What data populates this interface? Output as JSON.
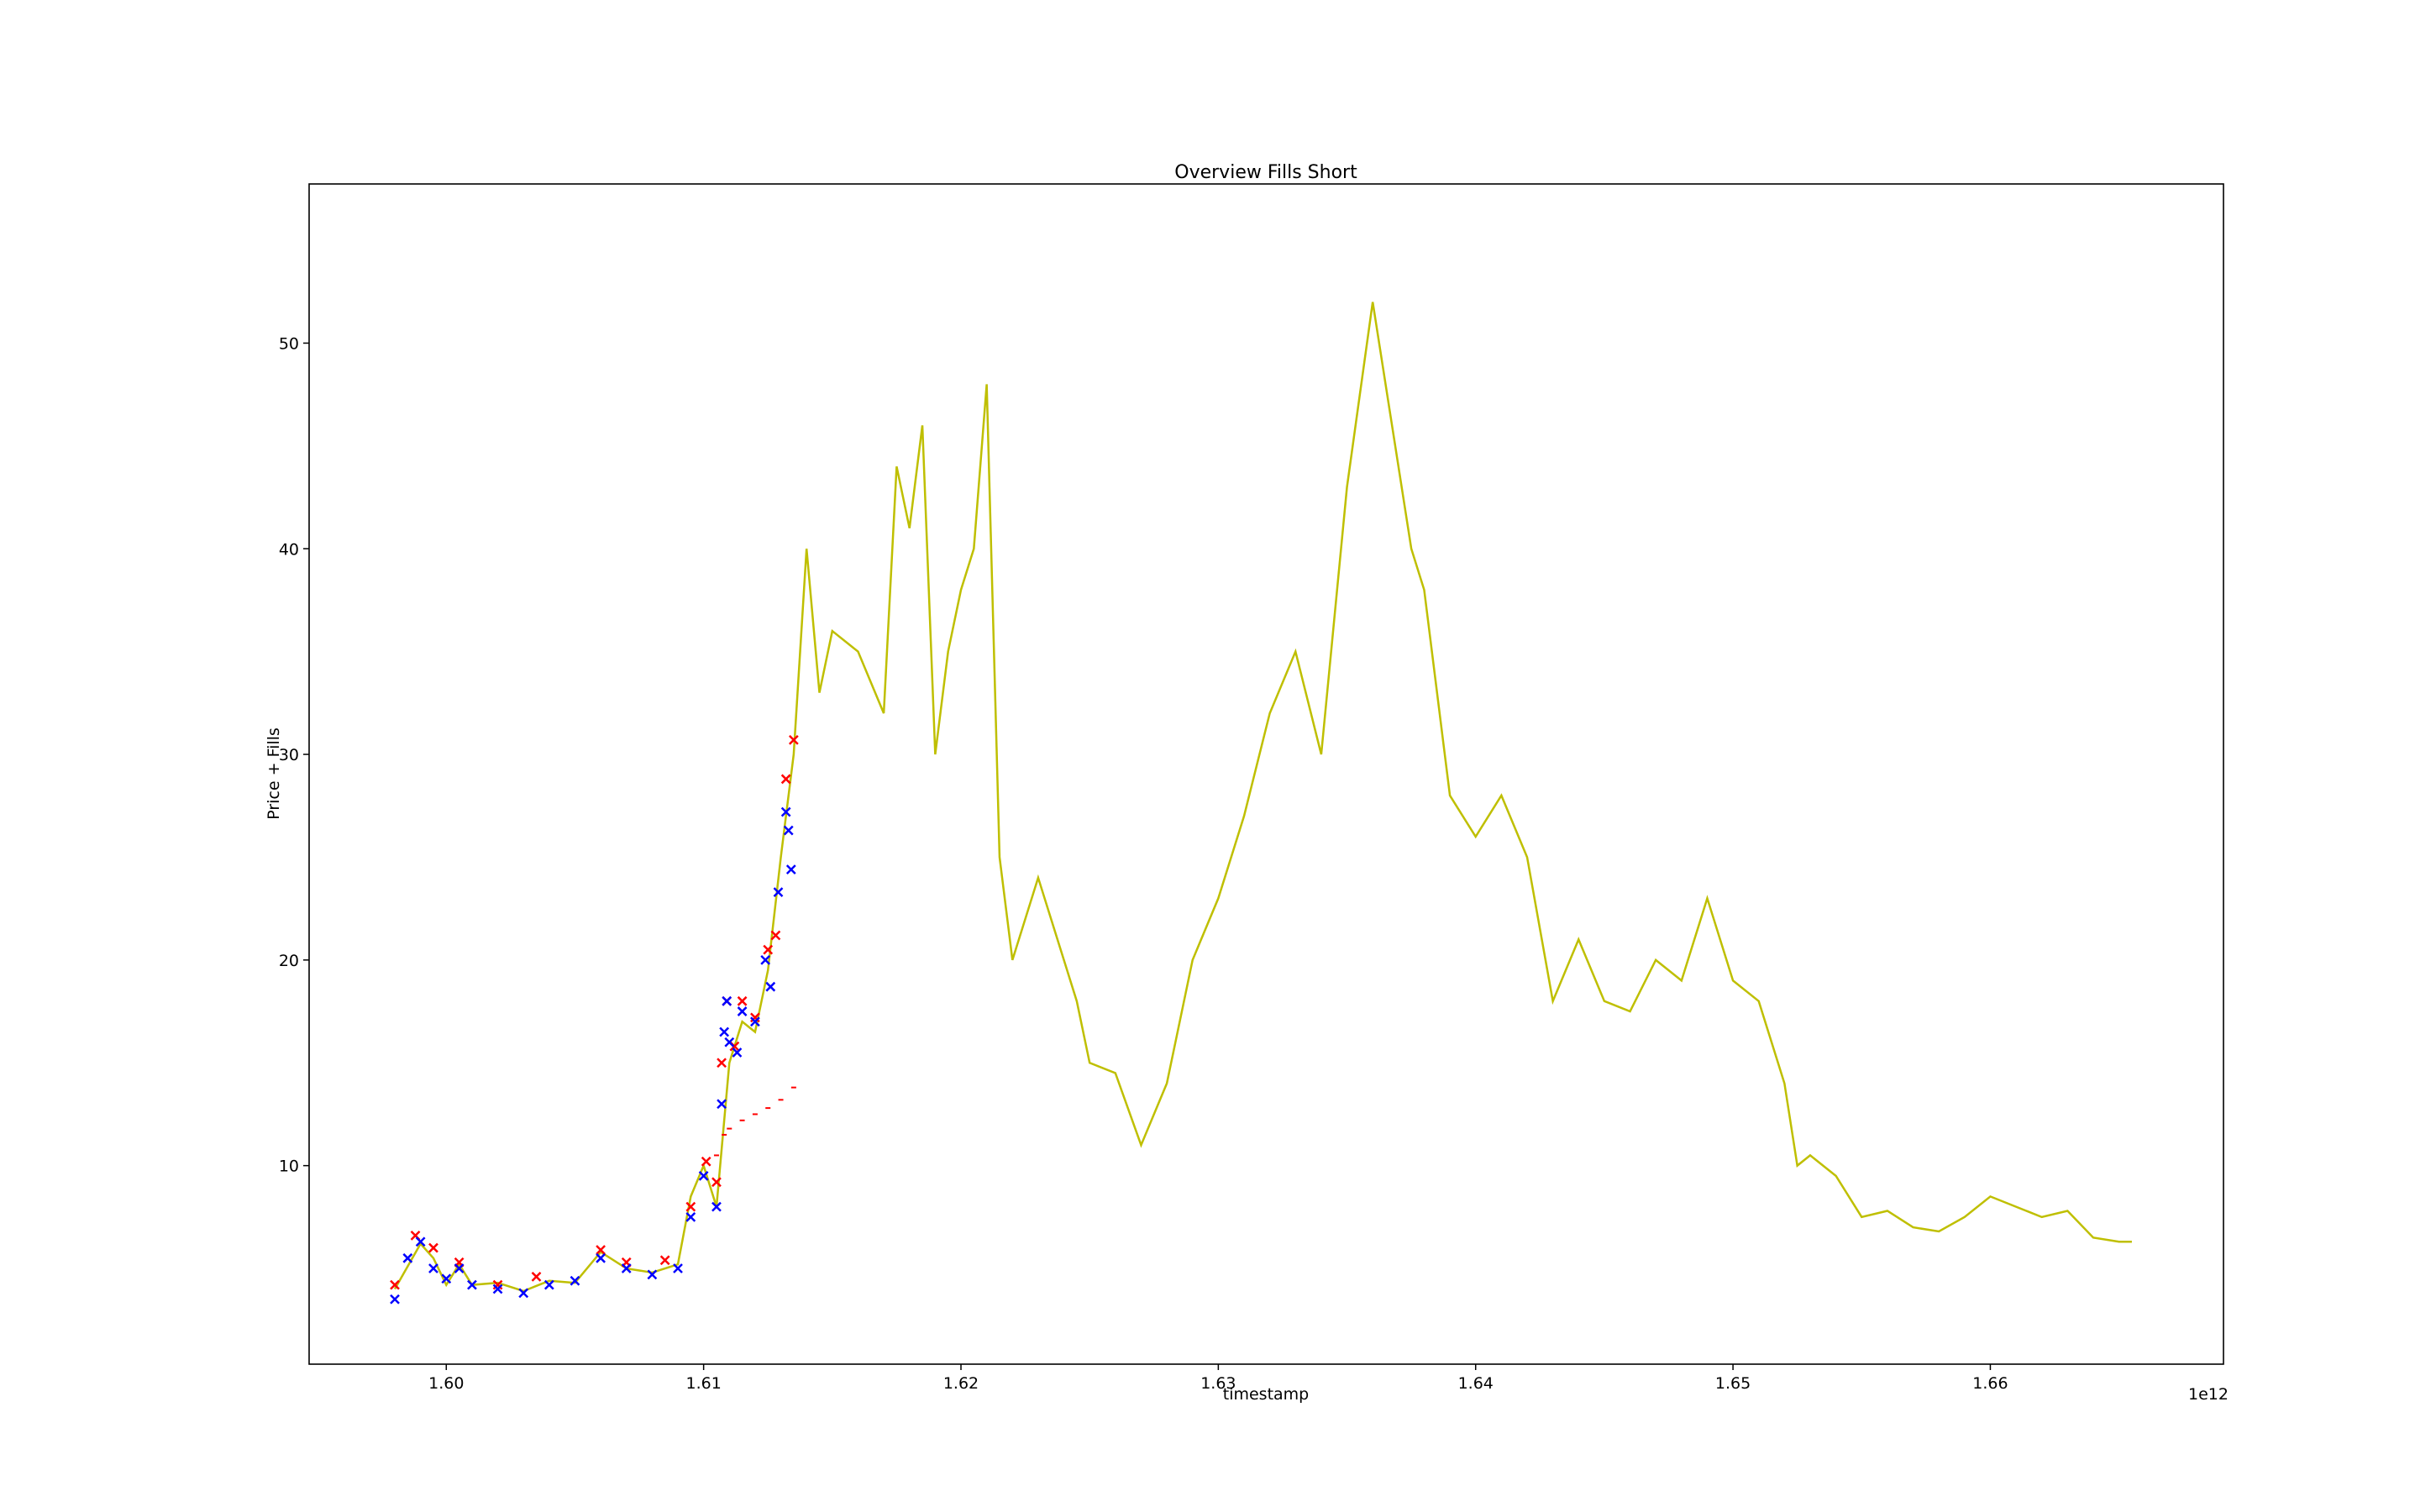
{
  "chart_data": {
    "type": "line",
    "title": "Overview Fills Short",
    "x_label": "timestamp",
    "y_label": "Price + Fills",
    "x_offset_label": "1e12",
    "xlim": [
      1.59467,
      1.66906
    ],
    "ylim": [
      0.345,
      57.74
    ],
    "xticks": [
      {
        "value": 1.6,
        "label": "1.60"
      },
      {
        "value": 1.61,
        "label": "1.61"
      },
      {
        "value": 1.62,
        "label": "1.62"
      },
      {
        "value": 1.63,
        "label": "1.63"
      },
      {
        "value": 1.64,
        "label": "1.64"
      },
      {
        "value": 1.65,
        "label": "1.65"
      },
      {
        "value": 1.66,
        "label": "1.66"
      }
    ],
    "yticks": [
      10,
      20,
      30,
      40,
      50
    ],
    "series": [
      {
        "style": "line",
        "color": "#bfbf00",
        "x": [
          1.598,
          1.599,
          1.5995,
          1.6,
          1.6005,
          1.601,
          1.602,
          1.603,
          1.604,
          1.605,
          1.606,
          1.607,
          1.608,
          1.609,
          1.6095,
          1.61,
          1.6105,
          1.611,
          1.6115,
          1.612,
          1.6125,
          1.613,
          1.6135,
          1.614,
          1.6145,
          1.615,
          1.616,
          1.617,
          1.6175,
          1.618,
          1.6185,
          1.619,
          1.6195,
          1.62,
          1.6205,
          1.621,
          1.6215,
          1.622,
          1.623,
          1.624,
          1.6245,
          1.625,
          1.626,
          1.627,
          1.628,
          1.629,
          1.63,
          1.631,
          1.632,
          1.633,
          1.634,
          1.635,
          1.636,
          1.637,
          1.6375,
          1.638,
          1.639,
          1.64,
          1.641,
          1.642,
          1.643,
          1.644,
          1.645,
          1.646,
          1.647,
          1.648,
          1.649,
          1.65,
          1.651,
          1.652,
          1.6525,
          1.653,
          1.654,
          1.655,
          1.656,
          1.657,
          1.658,
          1.659,
          1.66,
          1.661,
          1.662,
          1.663,
          1.664,
          1.665,
          1.6655
        ],
        "values": [
          4.0,
          6.2,
          5.5,
          4.2,
          5.2,
          4.2,
          4.3,
          3.9,
          4.4,
          4.3,
          5.8,
          5.0,
          4.8,
          5.2,
          8.5,
          10.0,
          8.0,
          15.0,
          17.0,
          16.5,
          19.5,
          25.0,
          30.0,
          40.0,
          33.0,
          36.0,
          35.0,
          32.0,
          44.0,
          41.0,
          46.0,
          30.0,
          35.0,
          38.0,
          40.0,
          48.0,
          25.0,
          20.0,
          24.0,
          20.0,
          18.0,
          15.0,
          14.5,
          11.0,
          14.0,
          20.0,
          23.0,
          27.0,
          32.0,
          35.0,
          30.0,
          43.0,
          52.0,
          44.0,
          40.0,
          38.0,
          28.0,
          26.0,
          28.0,
          25.0,
          18.0,
          21.0,
          18.0,
          17.5,
          20.0,
          19.0,
          23.0,
          19.0,
          18.0,
          14.0,
          10.0,
          10.5,
          9.5,
          7.5,
          7.8,
          7.0,
          6.8,
          7.5,
          8.5,
          8.0,
          7.5,
          7.8,
          6.5,
          6.3,
          6.3
        ]
      },
      {
        "style": "x",
        "color": "#ff0000",
        "x": [
          1.598,
          1.5988,
          1.5995,
          1.6005,
          1.602,
          1.6035,
          1.606,
          1.607,
          1.6085,
          1.6095,
          1.6101,
          1.6105,
          1.6107,
          1.6109,
          1.6112,
          1.6115,
          1.612,
          1.6125,
          1.6128,
          1.6132,
          1.6135
        ],
        "values": [
          4.2,
          6.6,
          6.0,
          5.3,
          4.2,
          4.6,
          5.9,
          5.3,
          5.4,
          8.0,
          10.2,
          9.2,
          15.0,
          18.0,
          15.8,
          18.0,
          17.2,
          20.5,
          21.2,
          28.8,
          30.7
        ]
      },
      {
        "style": "x",
        "color": "#0000ff",
        "x": [
          1.598,
          1.5985,
          1.599,
          1.5995,
          1.6,
          1.6005,
          1.601,
          1.602,
          1.603,
          1.604,
          1.605,
          1.606,
          1.607,
          1.608,
          1.609,
          1.6095,
          1.61,
          1.6105,
          1.6107,
          1.6108,
          1.6109,
          1.611,
          1.6113,
          1.6115,
          1.612,
          1.6124,
          1.6126,
          1.6129,
          1.6132,
          1.6133,
          1.6134
        ],
        "values": [
          3.5,
          5.5,
          6.3,
          5.0,
          4.5,
          5.0,
          4.2,
          4.0,
          3.8,
          4.2,
          4.4,
          5.5,
          5.0,
          4.7,
          5.0,
          7.5,
          9.5,
          8.0,
          13.0,
          16.5,
          18.0,
          16.0,
          15.5,
          17.5,
          17.0,
          20.0,
          18.7,
          23.3,
          27.2,
          26.3,
          24.4
        ]
      },
      {
        "style": "dot",
        "color": "#ff0000",
        "x": [
          1.6105,
          1.6108,
          1.611,
          1.6115,
          1.612,
          1.6125,
          1.613,
          1.6135
        ],
        "values": [
          10.5,
          11.5,
          11.8,
          12.2,
          12.5,
          12.8,
          13.2,
          13.8
        ]
      }
    ]
  }
}
